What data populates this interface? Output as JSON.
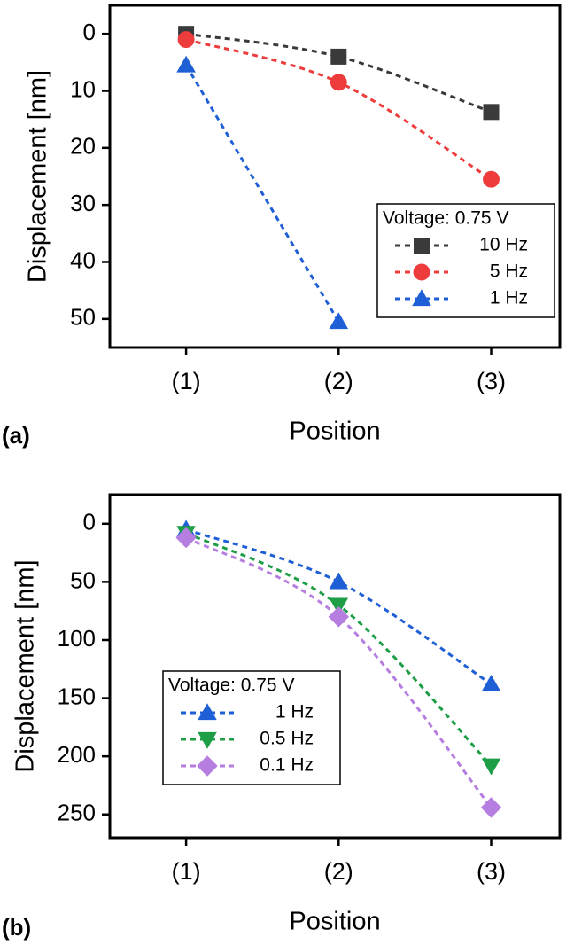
{
  "chart_data": [
    {
      "type": "line",
      "label": "(a)",
      "xlabel": "Position",
      "ylabel": "Displacement [nm]",
      "x": [
        1,
        2,
        3
      ],
      "xlim": [
        0.5,
        3.45
      ],
      "xticks": [
        {
          "value": 1,
          "label": "(1)"
        },
        {
          "value": 2,
          "label": "(2)"
        },
        {
          "value": 3,
          "label": "(3)"
        }
      ],
      "ylim": [
        -5,
        55
      ],
      "y_inverted": true,
      "yticks": [
        0,
        10,
        20,
        30,
        40,
        50
      ],
      "legend_title": "Voltage:  0.75 V",
      "legend_loc": "lower right",
      "series": [
        {
          "name": "10 Hz",
          "color": "#3a3a3a",
          "marker": "square",
          "values": [
            0,
            4,
            13.7
          ]
        },
        {
          "name": "5 Hz",
          "color": "#ee3b3b",
          "marker": "circle",
          "values": [
            1,
            8.5,
            25.5
          ]
        },
        {
          "name": "1 Hz",
          "color": "#1f5fd6",
          "marker": "triangle-up",
          "values": [
            5.5,
            50.5,
            null
          ]
        }
      ]
    },
    {
      "type": "line",
      "label": "(b)",
      "xlabel": "Position",
      "ylabel": "Displacement [nm]",
      "x": [
        1,
        2,
        3
      ],
      "xlim": [
        0.5,
        3.45
      ],
      "xticks": [
        {
          "value": 1,
          "label": "(1)"
        },
        {
          "value": 2,
          "label": "(2)"
        },
        {
          "value": 3,
          "label": "(3)"
        }
      ],
      "ylim": [
        -25,
        270
      ],
      "y_inverted": true,
      "yticks": [
        0,
        50,
        100,
        150,
        200,
        250
      ],
      "legend_title": "Voltage:  0.75 V",
      "legend_loc": "lower left",
      "series": [
        {
          "name": "1 Hz",
          "color": "#1f5fd6",
          "marker": "triangle-up",
          "values": [
            5,
            50,
            138
          ]
        },
        {
          "name": "0.5 Hz",
          "color": "#1e9e46",
          "marker": "triangle-down",
          "values": [
            8,
            70,
            208
          ]
        },
        {
          "name": "0.1 Hz",
          "color": "#b57ee0",
          "marker": "diamond",
          "values": [
            12,
            80,
            244
          ]
        }
      ]
    }
  ]
}
